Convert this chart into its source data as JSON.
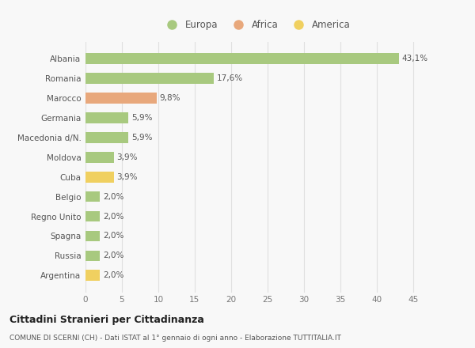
{
  "categories": [
    "Albania",
    "Romania",
    "Marocco",
    "Germania",
    "Macedonia d/N.",
    "Moldova",
    "Cuba",
    "Belgio",
    "Regno Unito",
    "Spagna",
    "Russia",
    "Argentina"
  ],
  "values": [
    43.1,
    17.6,
    9.8,
    5.9,
    5.9,
    3.9,
    3.9,
    2.0,
    2.0,
    2.0,
    2.0,
    2.0
  ],
  "labels": [
    "43,1%",
    "17,6%",
    "9,8%",
    "5,9%",
    "5,9%",
    "3,9%",
    "3,9%",
    "2,0%",
    "2,0%",
    "2,0%",
    "2,0%",
    "2,0%"
  ],
  "colors": [
    "#a8c97f",
    "#a8c97f",
    "#e8a87c",
    "#a8c97f",
    "#a8c97f",
    "#a8c97f",
    "#f0d060",
    "#a8c97f",
    "#a8c97f",
    "#a8c97f",
    "#a8c97f",
    "#f0d060"
  ],
  "legend": [
    {
      "label": "Europa",
      "color": "#a8c97f"
    },
    {
      "label": "Africa",
      "color": "#e8a87c"
    },
    {
      "label": "America",
      "color": "#f0d060"
    }
  ],
  "xlim": [
    0,
    47
  ],
  "xticks": [
    0,
    5,
    10,
    15,
    20,
    25,
    30,
    35,
    40,
    45
  ],
  "title": "Cittadini Stranieri per Cittadinanza",
  "subtitle": "COMUNE DI SCERNI (CH) - Dati ISTAT al 1° gennaio di ogni anno - Elaborazione TUTTITALIA.IT",
  "background_color": "#f8f8f8",
  "grid_color": "#e0e0e0",
  "bar_height": 0.55
}
